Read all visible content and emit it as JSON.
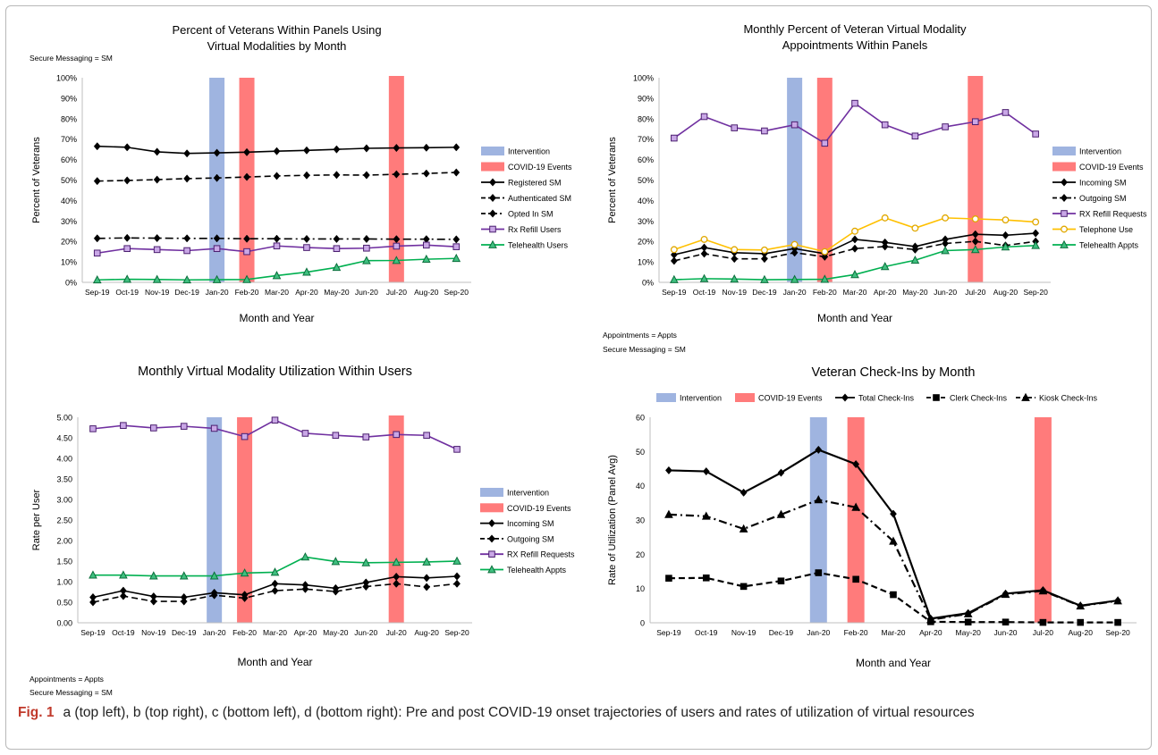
{
  "months": [
    "Sep-19",
    "Oct-19",
    "Nov-19",
    "Dec-19",
    "Jan-20",
    "Feb-20",
    "Mar-20",
    "Apr-20",
    "May-20",
    "Jun-20",
    "Jul-20",
    "Aug-20",
    "Sep-20"
  ],
  "colors": {
    "intervention": "#9fb4e0",
    "covid": "#ff7b7b",
    "black": "#000000",
    "purple": "#7030a0",
    "green": "#00b050",
    "yellow": "#ffc000"
  },
  "notes": {
    "a": "Secure Messaging = SM",
    "b1": "Appointments = Appts",
    "b2": "Secure Messaging = SM",
    "c1": "Appointments = Appts",
    "c2": "Secure Messaging = SM"
  },
  "caption": {
    "label": "Fig. 1",
    "text": "a (top left), b (top right), c (bottom left), d (bottom right): Pre and post COVID-19 onset trajectories of users and rates of utilization of virtual resources"
  },
  "chart_data": [
    {
      "id": "a",
      "type": "line",
      "title": [
        "Percent of Veterans Within Panels Using",
        "Virtual Modalities by Month"
      ],
      "xlabel": "Month and Year",
      "ylabel": "Percent of Veterans",
      "ylim": [
        0,
        100
      ],
      "yticks": [
        "0%",
        "10%",
        "20%",
        "30%",
        "40%",
        "50%",
        "60%",
        "70%",
        "80%",
        "90%",
        "100%"
      ],
      "bands": [
        {
          "name": "Intervention",
          "month": 4,
          "kind": "intervention"
        },
        {
          "name": "COVID-19 Events",
          "month": 5,
          "kind": "covid"
        },
        {
          "name": "",
          "month": 10,
          "kind": "covid"
        }
      ],
      "series": [
        {
          "name": "Registered SM",
          "values": [
            66.5,
            66,
            63.8,
            63,
            63.3,
            63.6,
            64.1,
            64.5,
            65,
            65.5,
            65.7,
            65.8,
            66
          ],
          "style": "solid",
          "marker": "diamond",
          "color": "#000000"
        },
        {
          "name": "Authenticated SM",
          "values": [
            49.5,
            49.8,
            50.2,
            50.7,
            51,
            51.5,
            52,
            52.3,
            52.5,
            52.4,
            52.8,
            53.2,
            53.7
          ],
          "style": "dash",
          "marker": "diamond",
          "color": "#000000"
        },
        {
          "name": "Opted In SM",
          "values": [
            21.5,
            21.7,
            21.6,
            21.5,
            21.5,
            21.3,
            21.3,
            21.2,
            21.2,
            21.2,
            21.1,
            21.1,
            21
          ],
          "style": "dashdot",
          "marker": "diamond",
          "color": "#000000"
        },
        {
          "name": "Rx Refill Users",
          "values": [
            14.3,
            16.5,
            16,
            15.5,
            16.5,
            15,
            17.8,
            17,
            16.5,
            16.7,
            17.7,
            18.2,
            17.4
          ],
          "style": "solid",
          "marker": "square",
          "color": "#7030a0"
        },
        {
          "name": "Telehealth Users",
          "values": [
            1.2,
            1.5,
            1.4,
            1.2,
            1.3,
            1.4,
            3.3,
            5,
            7.3,
            10.6,
            10.7,
            11.3,
            11.7
          ],
          "style": "solid",
          "marker": "triangle",
          "color": "#00b050"
        }
      ],
      "legend": [
        {
          "label": "Intervention",
          "kind": "intervention"
        },
        {
          "label": "COVID-19 Events",
          "kind": "covid"
        },
        {
          "label": "Registered SM",
          "series": 0
        },
        {
          "label": "Authenticated SM",
          "series": 1
        },
        {
          "label": "Opted In SM",
          "series": 2
        },
        {
          "label": "Rx Refill Users",
          "series": 3
        },
        {
          "label": "Telehealth Users",
          "series": 4
        }
      ]
    },
    {
      "id": "b",
      "type": "line",
      "title": [
        "Monthly Percent of Veteran Virtual Modality",
        "Appointments Within Panels"
      ],
      "xlabel": "Month and Year",
      "ylabel": "Percent of Veterans",
      "ylim": [
        0,
        100
      ],
      "yticks": [
        "0%",
        "10%",
        "20%",
        "30%",
        "40%",
        "50%",
        "60%",
        "70%",
        "80%",
        "90%",
        "100%"
      ],
      "bands": [
        {
          "name": "Intervention",
          "month": 4,
          "kind": "intervention"
        },
        {
          "name": "COVID-19 Events",
          "month": 5,
          "kind": "covid"
        },
        {
          "name": "",
          "month": 10,
          "kind": "covid"
        }
      ],
      "series": [
        {
          "name": "Incoming SM",
          "values": [
            13.5,
            17,
            14.5,
            14,
            16.5,
            14,
            21,
            19.5,
            17.5,
            21,
            23.5,
            23,
            24
          ],
          "style": "solid",
          "marker": "diamond",
          "color": "#000000"
        },
        {
          "name": "Outgoing SM",
          "values": [
            10.5,
            14,
            11.5,
            11.5,
            14.5,
            12.5,
            16.5,
            17.5,
            16,
            19,
            20,
            18,
            20
          ],
          "style": "dash",
          "marker": "diamond",
          "color": "#000000"
        },
        {
          "name": "RX Refill Requests",
          "values": [
            70.5,
            81,
            75.5,
            74,
            77,
            68,
            87.5,
            77,
            71.5,
            76,
            78.5,
            83,
            72.5
          ],
          "style": "solid",
          "marker": "square",
          "color": "#7030a0"
        },
        {
          "name": "Telephone Use",
          "values": [
            16,
            21,
            16,
            15.8,
            18.5,
            15,
            25,
            31.5,
            26.5,
            31.5,
            31,
            30.5,
            29.5
          ],
          "style": "solid",
          "marker": "circle",
          "color": "#ffc000"
        },
        {
          "name": "Telehealth Appts",
          "values": [
            1.3,
            1.8,
            1.6,
            1.3,
            1.4,
            1.5,
            3.8,
            7.7,
            10.8,
            15.5,
            16,
            17.3,
            18
          ],
          "style": "solid",
          "marker": "triangle",
          "color": "#00b050"
        }
      ],
      "legend": [
        {
          "label": "Intervention",
          "kind": "intervention"
        },
        {
          "label": "COVID-19 Events",
          "kind": "covid"
        },
        {
          "label": "Incoming SM",
          "series": 0
        },
        {
          "label": "Outgoing SM",
          "series": 1
        },
        {
          "label": "RX Refill Requests",
          "series": 2
        },
        {
          "label": "Telephone Use",
          "series": 3
        },
        {
          "label": "Telehealth Appts",
          "series": 4
        }
      ]
    },
    {
      "id": "c",
      "type": "line",
      "title": [
        "Monthly Virtual Modality Utilization Within Users"
      ],
      "xlabel": "Month and Year",
      "ylabel": "Rate per User",
      "ylim": [
        0,
        5
      ],
      "yticks": [
        "0.00",
        "0.50",
        "1.00",
        "1.50",
        "2.00",
        "2.50",
        "3.00",
        "3.50",
        "4.00",
        "4.50",
        "5.00"
      ],
      "bands": [
        {
          "name": "Intervention",
          "month": 4,
          "kind": "intervention"
        },
        {
          "name": "COVID-19 Events",
          "month": 5,
          "kind": "covid"
        },
        {
          "name": "",
          "month": 10,
          "kind": "covid"
        }
      ],
      "series": [
        {
          "name": "Incoming SM",
          "values": [
            0.62,
            0.78,
            0.64,
            0.62,
            0.73,
            0.68,
            0.95,
            0.92,
            0.84,
            0.98,
            1.12,
            1.09,
            1.13
          ],
          "style": "solid",
          "marker": "diamond",
          "color": "#000000"
        },
        {
          "name": "Outgoing SM",
          "values": [
            0.5,
            0.65,
            0.52,
            0.52,
            0.67,
            0.6,
            0.78,
            0.82,
            0.76,
            0.88,
            0.95,
            0.87,
            0.95
          ],
          "style": "dash",
          "marker": "diamond",
          "color": "#000000"
        },
        {
          "name": "RX Refill Requests",
          "values": [
            4.72,
            4.8,
            4.74,
            4.78,
            4.73,
            4.53,
            4.93,
            4.61,
            4.56,
            4.52,
            4.58,
            4.56,
            4.22
          ],
          "style": "solid",
          "marker": "square",
          "color": "#7030a0"
        },
        {
          "name": "Telehealth Appts",
          "values": [
            1.16,
            1.16,
            1.14,
            1.14,
            1.14,
            1.21,
            1.23,
            1.6,
            1.49,
            1.46,
            1.47,
            1.48,
            1.5
          ],
          "style": "solid",
          "marker": "triangle",
          "color": "#00b050"
        }
      ],
      "legend": [
        {
          "label": "Intervention",
          "kind": "intervention"
        },
        {
          "label": "COVID-19 Events",
          "kind": "covid"
        },
        {
          "label": "Incoming SM",
          "series": 0
        },
        {
          "label": "Outgoing SM",
          "series": 1
        },
        {
          "label": "RX Refill Requests",
          "series": 2
        },
        {
          "label": "Telehealth Appts",
          "series": 3
        }
      ]
    },
    {
      "id": "d",
      "type": "line",
      "title": [
        "Veteran Check-Ins by Month"
      ],
      "xlabel": "Month and Year",
      "ylabel": "Rate of Utilization (Panel Avg)",
      "ylim": [
        0,
        60
      ],
      "yticks": [
        "0",
        "10",
        "20",
        "30",
        "40",
        "50",
        "60"
      ],
      "bands": [
        {
          "name": "Intervention",
          "month": 4,
          "kind": "intervention"
        },
        {
          "name": "COVID-19 Events",
          "month": 5,
          "kind": "covid"
        },
        {
          "name": "",
          "month": 10,
          "kind": "covid"
        }
      ],
      "series": [
        {
          "name": "Total Check-Ins",
          "values": [
            44.5,
            44.2,
            38,
            43.8,
            50.5,
            46.3,
            31.8,
            1.2,
            2.8,
            8.5,
            9.5,
            5,
            6.5
          ],
          "style": "solid",
          "marker": "diamond",
          "color": "#000000"
        },
        {
          "name": "Clerk Check-Ins",
          "values": [
            13,
            13.1,
            10.6,
            12.2,
            14.6,
            12.7,
            8.2,
            0.3,
            0.2,
            0.2,
            0.1,
            0.1,
            0.1
          ],
          "style": "dash",
          "marker": "square",
          "color": "#000000"
        },
        {
          "name": "Kiosk Check-Ins",
          "values": [
            31.6,
            31.1,
            27.4,
            31.6,
            35.9,
            33.7,
            23.8,
            0.9,
            2.6,
            8.3,
            9.3,
            4.9,
            6.4
          ],
          "style": "dashdot",
          "marker": "triangle",
          "color": "#000000"
        }
      ],
      "legend": [
        {
          "label": "Intervention",
          "kind": "intervention"
        },
        {
          "label": "COVID-19 Events",
          "kind": "covid"
        },
        {
          "label": "Total Check-Ins",
          "series": 0
        },
        {
          "label": "Clerk Check-Ins",
          "series": 1
        },
        {
          "label": "Kiosk Check-Ins",
          "series": 2
        }
      ]
    }
  ]
}
